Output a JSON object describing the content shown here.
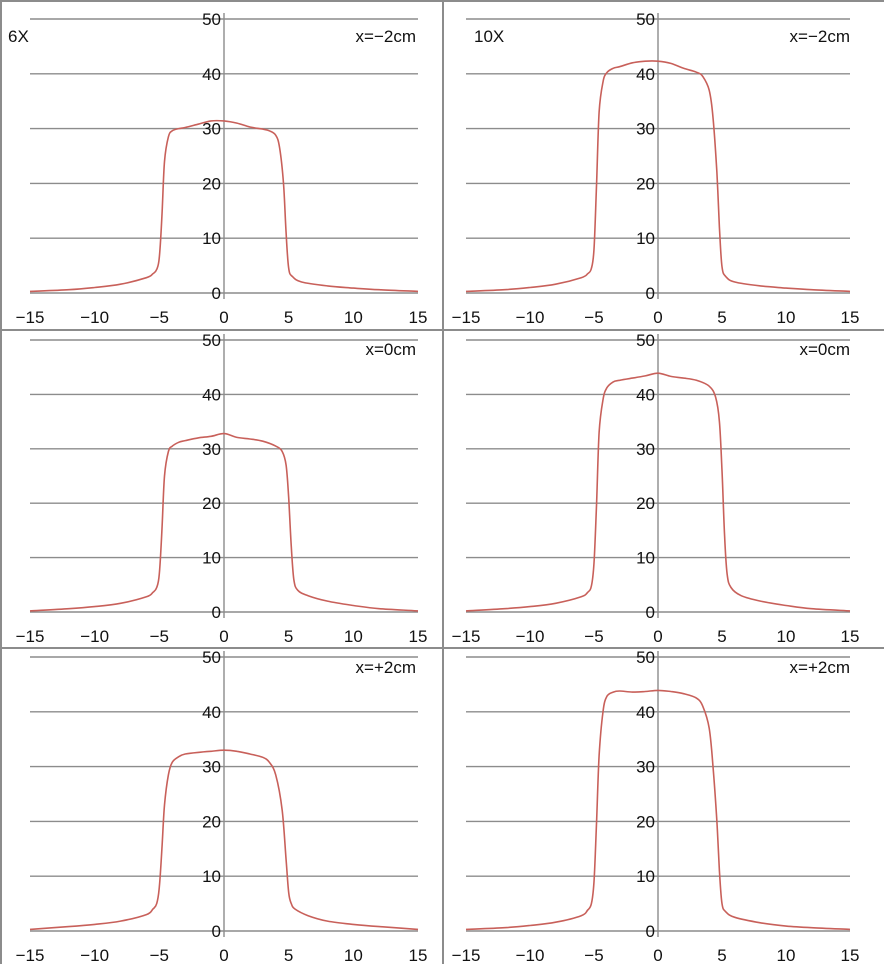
{
  "colors": {
    "curve": "#c8605a",
    "grid": "#8c8c8c",
    "text": "#111111"
  },
  "chart_data": [
    {
      "type": "line",
      "corner_label": "6X",
      "position_label": "x=−2cm",
      "xlim": [
        -15,
        15
      ],
      "ylim": [
        0,
        50
      ],
      "xticks": [
        "−15",
        "−10",
        "−5",
        "0",
        "5",
        "10",
        "15"
      ],
      "yticks": [
        "0",
        "10",
        "20",
        "30",
        "40",
        "50"
      ],
      "grid": "horizontal",
      "x": [
        -15,
        -12,
        -10,
        -8,
        -6,
        -5.5,
        -5.2,
        -5.0,
        -4.8,
        -4.6,
        -4.3,
        -4.0,
        -3.5,
        -3.0,
        -2.0,
        -1.0,
        0,
        1.0,
        2.0,
        3.0,
        3.5,
        4.0,
        4.3,
        4.6,
        4.8,
        5.0,
        5.3,
        6,
        8,
        10,
        12,
        15
      ],
      "y": [
        0.3,
        0.6,
        1.0,
        1.6,
        2.8,
        3.5,
        4.3,
        6.5,
        14,
        24,
        28.5,
        29.6,
        30.0,
        30.2,
        30.8,
        31.4,
        31.4,
        31.0,
        30.3,
        29.9,
        29.6,
        28.8,
        26.5,
        20,
        11,
        4.5,
        3.0,
        2.0,
        1.3,
        0.9,
        0.6,
        0.3
      ]
    },
    {
      "type": "line",
      "corner_label": "10X",
      "position_label": "x=−2cm",
      "xlim": [
        -15,
        15
      ],
      "ylim": [
        0,
        50
      ],
      "xticks": [
        "−15",
        "−10",
        "−5",
        "0",
        "5",
        "10",
        "15"
      ],
      "yticks": [
        "0",
        "10",
        "20",
        "30",
        "40",
        "50"
      ],
      "grid": "horizontal",
      "x": [
        -15,
        -12,
        -10,
        -8,
        -6,
        -5.5,
        -5.2,
        -5.0,
        -4.8,
        -4.6,
        -4.3,
        -4.0,
        -3.5,
        -3.0,
        -2.0,
        -1.0,
        0,
        1.0,
        2.0,
        3.0,
        3.5,
        4.0,
        4.3,
        4.6,
        4.8,
        5.0,
        5.3,
        6,
        8,
        10,
        12,
        15
      ],
      "y": [
        0.3,
        0.6,
        1.0,
        1.6,
        2.8,
        3.5,
        4.5,
        8,
        20,
        33,
        38.5,
        40.2,
        41.0,
        41.3,
        42.0,
        42.3,
        42.3,
        41.9,
        41.0,
        40.3,
        39.5,
        37,
        32,
        22,
        12,
        4.8,
        3.0,
        2.0,
        1.3,
        0.9,
        0.6,
        0.3
      ]
    },
    {
      "type": "line",
      "corner_label": "",
      "position_label": "x=0cm",
      "xlim": [
        -15,
        15
      ],
      "ylim": [
        0,
        50
      ],
      "xticks": [
        "−15",
        "−10",
        "−5",
        "0",
        "5",
        "10",
        "15"
      ],
      "yticks": [
        "0",
        "10",
        "20",
        "30",
        "40",
        "50"
      ],
      "grid": "horizontal",
      "x": [
        -15,
        -12,
        -10,
        -8,
        -6,
        -5.5,
        -5.2,
        -5.0,
        -4.8,
        -4.6,
        -4.3,
        -4.0,
        -3.5,
        -3.0,
        -2.0,
        -1.0,
        0,
        1.0,
        2.0,
        3.0,
        4.0,
        4.5,
        4.8,
        5.0,
        5.2,
        5.4,
        5.7,
        6.5,
        8,
        10,
        12,
        15
      ],
      "y": [
        0.2,
        0.6,
        1.0,
        1.6,
        2.8,
        3.6,
        4.5,
        7,
        15,
        25,
        29.5,
        30.5,
        31.2,
        31.5,
        32.0,
        32.3,
        32.8,
        32.1,
        31.8,
        31.4,
        30.5,
        29.5,
        27,
        21,
        12,
        6,
        4.0,
        3.0,
        2.0,
        1.2,
        0.6,
        0.2
      ]
    },
    {
      "type": "line",
      "corner_label": "",
      "position_label": "x=0cm",
      "xlim": [
        -15,
        15
      ],
      "ylim": [
        0,
        50
      ],
      "xticks": [
        "−15",
        "−10",
        "−5",
        "0",
        "5",
        "10",
        "15"
      ],
      "yticks": [
        "0",
        "10",
        "20",
        "30",
        "40",
        "50"
      ],
      "grid": "horizontal",
      "x": [
        -15,
        -12,
        -10,
        -8,
        -6,
        -5.5,
        -5.2,
        -5.0,
        -4.8,
        -4.6,
        -4.3,
        -4.0,
        -3.5,
        -3.0,
        -2.0,
        -1.0,
        0,
        1.0,
        2.0,
        3.0,
        4.0,
        4.5,
        4.8,
        5.0,
        5.2,
        5.4,
        5.7,
        6.5,
        8,
        10,
        12,
        15
      ],
      "y": [
        0.2,
        0.6,
        1.0,
        1.6,
        2.8,
        3.6,
        4.8,
        9,
        20,
        33,
        39,
        41.2,
        42.3,
        42.6,
        43.0,
        43.4,
        43.9,
        43.3,
        43.0,
        42.6,
        41.5,
        39.5,
        35,
        26,
        14,
        7,
        4.5,
        3.0,
        2.0,
        1.2,
        0.6,
        0.2
      ]
    },
    {
      "type": "line",
      "corner_label": "",
      "position_label": "x=+2cm",
      "xlim": [
        -15,
        15
      ],
      "ylim": [
        0,
        50
      ],
      "xticks": [
        "−15",
        "−10",
        "−5",
        "0",
        "5",
        "10",
        "15"
      ],
      "yticks": [
        "0",
        "10",
        "20",
        "30",
        "40",
        "50"
      ],
      "grid": "horizontal",
      "x": [
        -15,
        -12,
        -10,
        -8,
        -6,
        -5.5,
        -5.2,
        -5.0,
        -4.8,
        -4.6,
        -4.3,
        -4.0,
        -3.5,
        -3.0,
        -2.0,
        -1.0,
        0,
        1.0,
        2.0,
        3.0,
        3.5,
        4.0,
        4.5,
        4.8,
        5.0,
        5.2,
        5.5,
        6.5,
        8,
        10,
        12,
        15
      ],
      "y": [
        0.3,
        0.8,
        1.2,
        1.8,
        3.0,
        4.0,
        5.0,
        8,
        15,
        23,
        28.5,
        30.8,
        31.8,
        32.3,
        32.6,
        32.8,
        33.0,
        32.8,
        32.3,
        31.7,
        30.8,
        28.5,
        22,
        13,
        7,
        5,
        4.0,
        2.8,
        1.8,
        1.2,
        0.8,
        0.3
      ]
    },
    {
      "type": "line",
      "corner_label": "",
      "position_label": "x=+2cm",
      "xlim": [
        -15,
        15
      ],
      "ylim": [
        0,
        50
      ],
      "xticks": [
        "−15",
        "−10",
        "−5",
        "0",
        "5",
        "10",
        "15"
      ],
      "yticks": [
        "0",
        "10",
        "20",
        "30",
        "40",
        "50"
      ],
      "grid": "horizontal",
      "x": [
        -15,
        -12,
        -10,
        -8,
        -6,
        -5.5,
        -5.2,
        -5.0,
        -4.8,
        -4.6,
        -4.3,
        -4.0,
        -3.5,
        -3.0,
        -2.0,
        -1.0,
        0,
        1.0,
        2.0,
        3.0,
        3.5,
        4.0,
        4.3,
        4.6,
        4.8,
        5.0,
        5.3,
        6.0,
        8,
        10,
        12,
        15
      ],
      "y": [
        0.3,
        0.6,
        1.0,
        1.6,
        2.8,
        3.8,
        5.0,
        9,
        20,
        32,
        40,
        42.8,
        43.6,
        43.8,
        43.6,
        43.7,
        43.9,
        43.7,
        43.3,
        42.5,
        41.0,
        37,
        30,
        20,
        11,
        5,
        3.5,
        2.5,
        1.5,
        0.9,
        0.6,
        0.3
      ]
    }
  ]
}
